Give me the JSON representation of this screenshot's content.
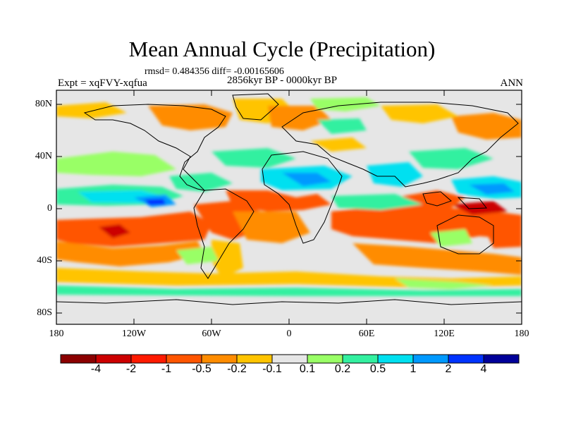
{
  "title": "Mean Annual Cycle (Precipitation)",
  "stats": "rmsd= 0.484356 diff= -0.00165606",
  "period": "2856kyr BP - 0000kyr BP",
  "experiment": "Expt = xqFVY-xqfua",
  "season": "ANN",
  "lat_ticks": [
    "80N",
    "40N",
    "0",
    "40S",
    "80S"
  ],
  "lon_ticks": [
    "180",
    "120W",
    "60W",
    "0",
    "60E",
    "120E",
    "180"
  ],
  "colorbar": {
    "labels": [
      "-4",
      "-2",
      "-1",
      "-0.5",
      "-0.2",
      "-0.1",
      "0.1",
      "0.2",
      "0.5",
      "1",
      "2",
      "4"
    ],
    "colors": [
      "#8b0000",
      "#cc0000",
      "#ff1a00",
      "#ff5500",
      "#ff8c00",
      "#ffc400",
      "#e6e6e6",
      "#99ff66",
      "#33f0a0",
      "#00e0f0",
      "#0099ff",
      "#0033ff",
      "#000099"
    ]
  },
  "palette": {
    "background": "#e6e6e6",
    "dry_strong": "#ff5500",
    "dry": "#ff8c00",
    "dry_weak": "#ffc400",
    "wet_weak": "#99ff66",
    "wet": "#33f0a0",
    "wet_strong": "#00e0f0",
    "wet_very": "#0099ff",
    "wet_extreme": "#0033ff",
    "extreme_dry": "#cc0000"
  }
}
